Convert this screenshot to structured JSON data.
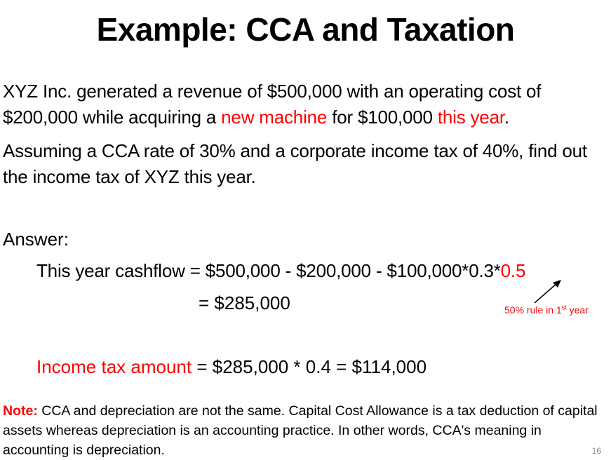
{
  "slide": {
    "title": "Example: CCA and Taxation",
    "problem": {
      "p1_a": "XYZ Inc. generated a revenue of $500,000 with an operating cost of $200,000 while acquiring a ",
      "p1_red1": "new machine",
      "p1_b": " for $100,000 ",
      "p1_red2": "this year",
      "p1_c": ".",
      "p2": "Assuming a CCA rate of 30% and a corporate income tax of 40%, find out the income tax of XYZ this year."
    },
    "answer": {
      "label": "Answer:",
      "eq1_main": "This year cashflow = $500,000 - $200,000 - $100,000*0.3*",
      "eq1_red": "0.5",
      "eq2": "= $285,000",
      "rule_note_a": "50% rule in 1",
      "rule_note_sup": "st",
      "rule_note_b": " year",
      "tax_red": "Income tax amount",
      "tax_rest": " = $285,000 * 0.4 = $114,000"
    },
    "note": {
      "label": "Note:",
      "text": " CCA and depreciation are not the same. Capital Cost Allowance is a tax deduction of capital assets whereas depreciation is an accounting practice. In other words, CCA's meaning in accounting is depreciation."
    },
    "page_number": "16"
  },
  "colors": {
    "accent_red": "#ff0000",
    "text": "#000000",
    "page_number": "#8a8a8a"
  },
  "icons": {
    "pointer_arrow": "arrow-up-right-icon"
  }
}
